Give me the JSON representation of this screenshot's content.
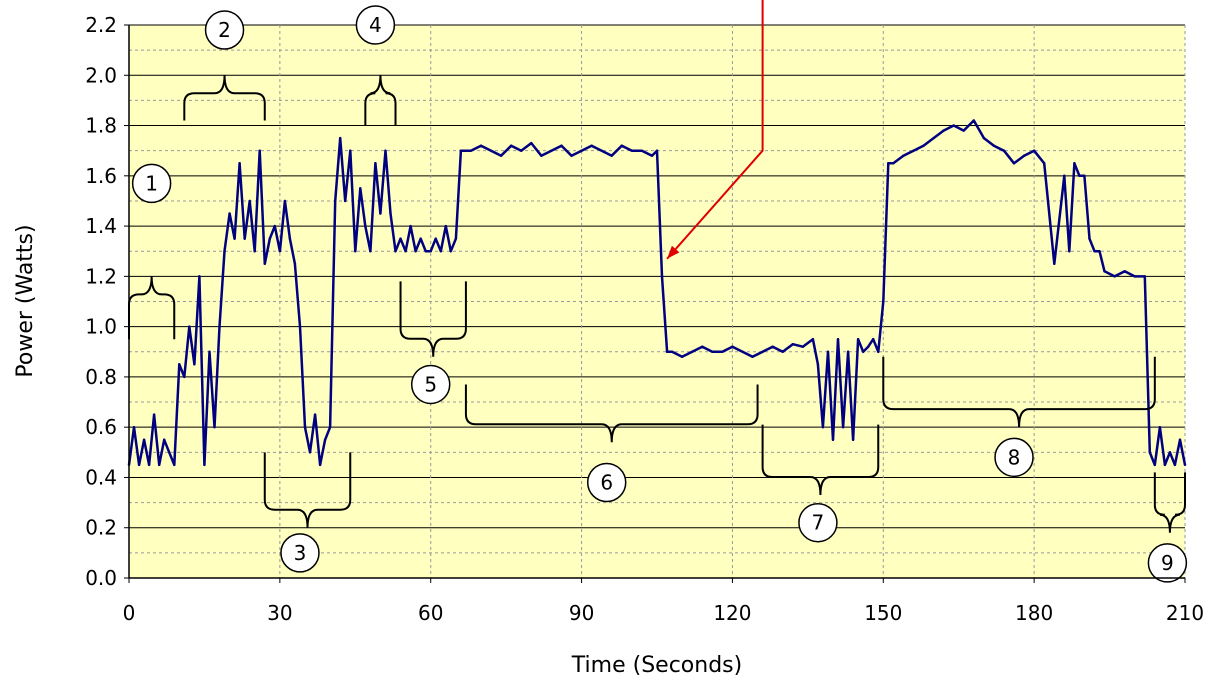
{
  "chart_data": {
    "type": "line",
    "xlabel": "Time (Seconds)",
    "ylabel": "Power (Watts)",
    "xlim": [
      0,
      210
    ],
    "ylim": [
      0,
      2.2
    ],
    "x_ticks": [
      "0",
      "30",
      "60",
      "90",
      "120",
      "150",
      "180",
      "210"
    ],
    "y_ticks": [
      "0.0",
      "0.2",
      "0.4",
      "0.6",
      "0.8",
      "1.0",
      "1.2",
      "1.4",
      "1.6",
      "1.8",
      "2.0",
      "2.2"
    ],
    "grid": true,
    "background_color": "#ffffc0",
    "line_color": "#000080",
    "arrow_color": "#e00000",
    "series": [
      {
        "x": [
          0,
          1,
          2,
          3,
          4,
          5,
          6,
          7,
          8,
          9,
          10,
          11,
          12,
          13,
          14,
          15,
          16,
          17,
          18,
          19,
          20,
          21,
          22,
          23,
          24,
          25,
          26,
          27,
          28,
          29,
          30,
          31,
          32,
          33,
          34,
          35,
          36,
          37,
          38,
          39,
          40,
          41,
          42,
          43,
          44,
          45,
          46,
          47,
          48,
          49,
          50,
          51,
          52,
          53,
          54,
          55,
          56,
          57,
          58,
          59,
          60,
          61,
          62,
          63,
          64,
          65,
          66,
          67,
          68,
          70,
          72,
          74,
          76,
          78,
          80,
          82,
          84,
          86,
          88,
          90,
          92,
          94,
          96,
          98,
          100,
          102,
          104,
          105,
          106,
          107,
          108,
          110,
          112,
          114,
          116,
          118,
          120,
          122,
          124,
          126,
          128,
          130,
          132,
          134,
          136,
          137,
          138,
          139,
          140,
          141,
          142,
          143,
          144,
          145,
          146,
          147,
          148,
          149,
          150,
          151,
          152,
          154,
          156,
          158,
          160,
          162,
          164,
          166,
          168,
          170,
          172,
          174,
          176,
          178,
          180,
          182,
          184,
          186,
          187,
          188,
          189,
          190,
          191,
          192,
          193,
          194,
          196,
          198,
          200,
          202,
          203,
          204,
          205,
          206,
          207,
          208,
          209,
          210
        ],
        "y": [
          0.45,
          0.6,
          0.45,
          0.55,
          0.45,
          0.65,
          0.45,
          0.55,
          0.5,
          0.45,
          0.85,
          0.8,
          1.0,
          0.85,
          1.2,
          0.45,
          0.9,
          0.6,
          1.0,
          1.3,
          1.45,
          1.35,
          1.65,
          1.35,
          1.5,
          1.3,
          1.7,
          1.25,
          1.35,
          1.4,
          1.3,
          1.5,
          1.35,
          1.25,
          1.0,
          0.6,
          0.5,
          0.65,
          0.45,
          0.55,
          0.6,
          1.5,
          1.75,
          1.5,
          1.7,
          1.3,
          1.55,
          1.4,
          1.3,
          1.65,
          1.45,
          1.7,
          1.45,
          1.3,
          1.35,
          1.3,
          1.4,
          1.3,
          1.35,
          1.3,
          1.3,
          1.35,
          1.3,
          1.4,
          1.3,
          1.35,
          1.7,
          1.7,
          1.7,
          1.72,
          1.7,
          1.68,
          1.72,
          1.7,
          1.73,
          1.68,
          1.7,
          1.72,
          1.68,
          1.7,
          1.72,
          1.7,
          1.68,
          1.72,
          1.7,
          1.7,
          1.68,
          1.7,
          1.2,
          0.9,
          0.9,
          0.88,
          0.9,
          0.92,
          0.9,
          0.9,
          0.92,
          0.9,
          0.88,
          0.9,
          0.92,
          0.9,
          0.93,
          0.92,
          0.95,
          0.85,
          0.6,
          0.9,
          0.55,
          0.95,
          0.6,
          0.9,
          0.55,
          0.95,
          0.9,
          0.92,
          0.95,
          0.9,
          1.1,
          1.65,
          1.65,
          1.68,
          1.7,
          1.72,
          1.75,
          1.78,
          1.8,
          1.78,
          1.82,
          1.75,
          1.72,
          1.7,
          1.65,
          1.68,
          1.7,
          1.65,
          1.25,
          1.6,
          1.3,
          1.65,
          1.6,
          1.6,
          1.35,
          1.3,
          1.3,
          1.22,
          1.2,
          1.22,
          1.2,
          1.2,
          0.5,
          0.45,
          0.6,
          0.45,
          0.5,
          0.45,
          0.55,
          0.45
        ]
      }
    ],
    "arrow_annotation": {
      "from_x": 126,
      "from_y": 2.35,
      "corner_x": 126,
      "corner_y": 1.7,
      "to_x": 107,
      "to_y": 1.27
    },
    "annotations": [
      {
        "label": "1",
        "x": 4.5,
        "y": 1.57,
        "bracket": "up",
        "x1": 0,
        "x2": 9,
        "ytip": 1.2,
        "ybase": 0.95
      },
      {
        "label": "2",
        "x": 19,
        "y": 2.18,
        "bracket": "up",
        "x1": 11,
        "x2": 27,
        "ytip": 2.0,
        "ybase": 1.82
      },
      {
        "label": "3",
        "x": 34,
        "y": 0.1,
        "bracket": "down",
        "x1": 27,
        "x2": 44,
        "ytip": 0.2,
        "ybase": 0.5
      },
      {
        "label": "4",
        "x": 49,
        "y": 2.2,
        "bracket": "up",
        "x1": 47,
        "x2": 53,
        "ytip": 2.0,
        "ybase": 1.8
      },
      {
        "label": "5",
        "x": 60,
        "y": 0.77,
        "bracket": "down",
        "x1": 54,
        "x2": 67,
        "ytip": 0.88,
        "ybase": 1.18
      },
      {
        "label": "6",
        "x": 95,
        "y": 0.38,
        "bracket": "down",
        "x1": 67,
        "x2": 125,
        "ytip": 0.54,
        "ybase": 0.77
      },
      {
        "label": "7",
        "x": 137,
        "y": 0.22,
        "bracket": "down",
        "x1": 126,
        "x2": 149,
        "ytip": 0.33,
        "ybase": 0.61
      },
      {
        "label": "8",
        "x": 176,
        "y": 0.48,
        "bracket": "down",
        "x1": 150,
        "x2": 204,
        "ytip": 0.6,
        "ybase": 0.88
      },
      {
        "label": "9",
        "x": 206.5,
        "y": 0.06,
        "bracket": "down",
        "x1": 204,
        "x2": 210,
        "ytip": 0.18,
        "ybase": 0.42
      }
    ]
  }
}
